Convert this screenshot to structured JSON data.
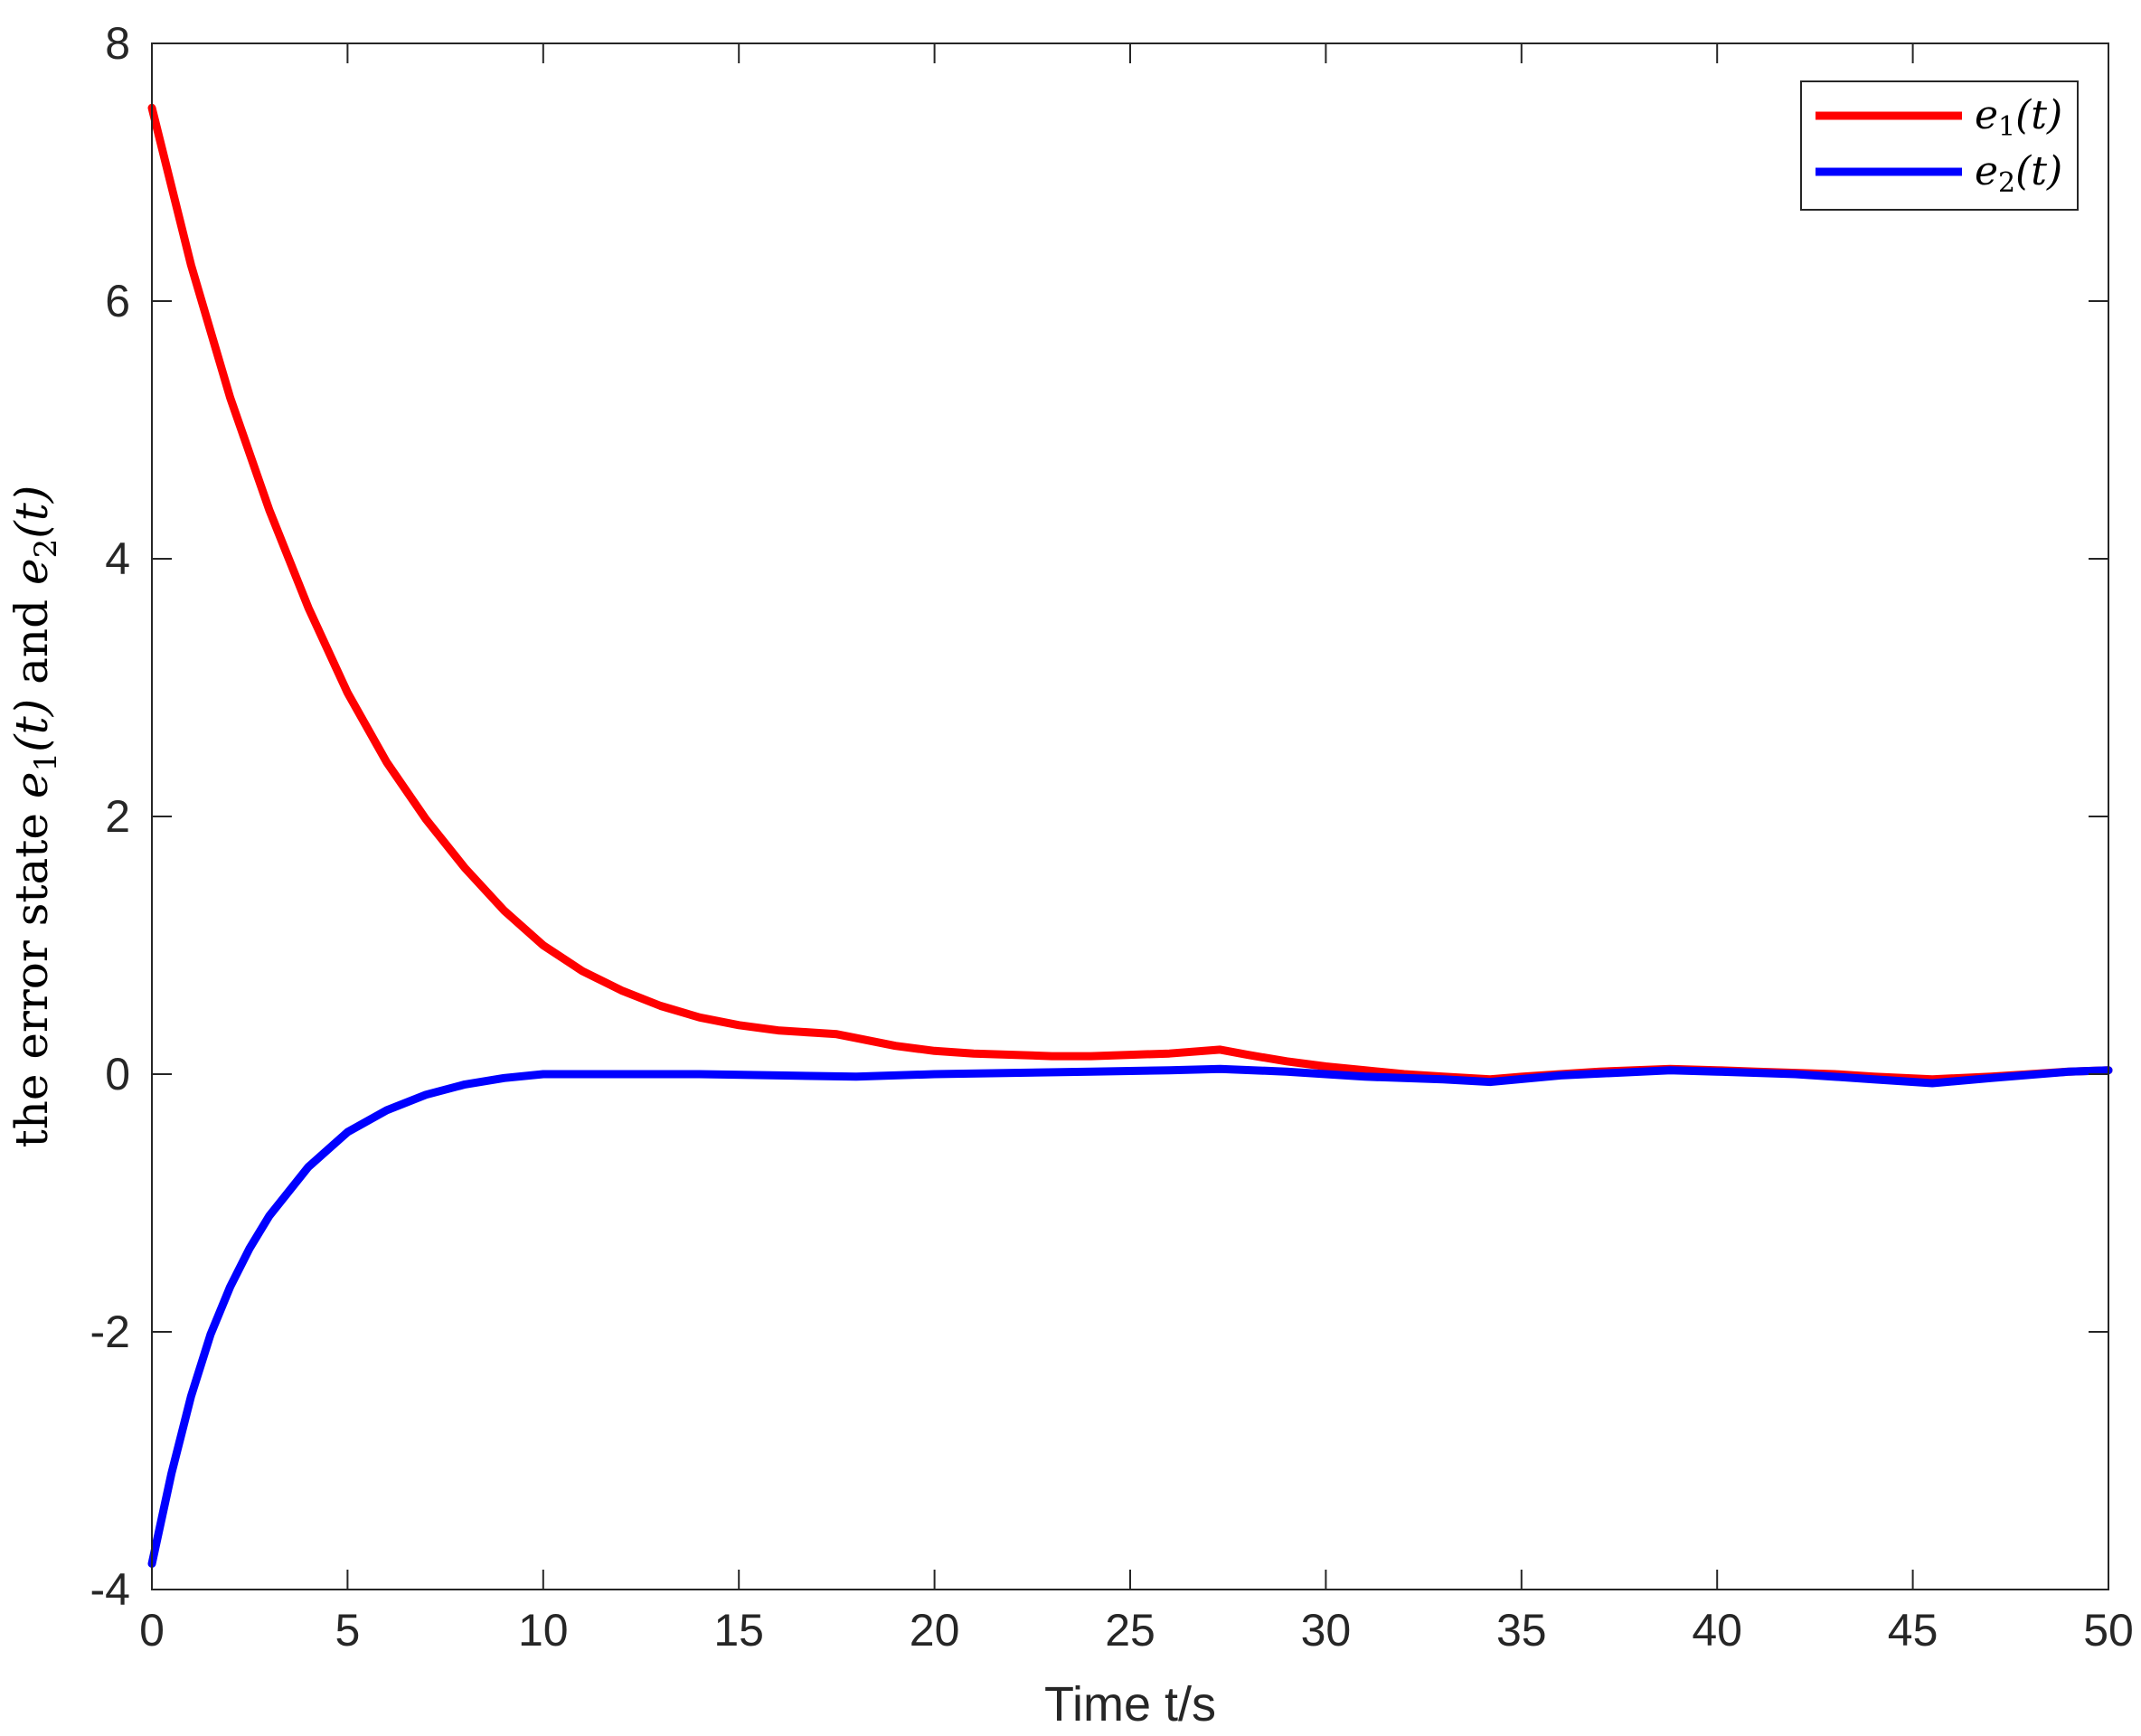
{
  "chart_data": {
    "type": "line",
    "title": "",
    "xlabel": "Time t/s",
    "ylabel": {
      "prefix": "the error state ",
      "term1": "e",
      "sub1": "1",
      "arg1": "(t)",
      "conj": " and ",
      "term2": "e",
      "sub2": "2",
      "arg2": "(t)"
    },
    "xlim": [
      0,
      50
    ],
    "ylim": [
      -4,
      8
    ],
    "xticks": [
      0,
      5,
      10,
      15,
      20,
      25,
      30,
      35,
      40,
      45,
      50
    ],
    "yticks": [
      -4,
      -2,
      0,
      2,
      4,
      6,
      8
    ],
    "ytick_labels": [
      "-4",
      "-2",
      "0",
      "2",
      "4",
      "6",
      "8"
    ],
    "grid": false,
    "legend_position": "top-right",
    "series": [
      {
        "name": "e1(t)",
        "legend": {
          "base": "e",
          "sub": "1",
          "arg": "(t)"
        },
        "color": "#ff0000",
        "x": [
          0,
          1,
          2,
          3,
          4,
          5,
          6,
          7,
          8,
          9,
          10,
          11,
          12,
          13,
          14,
          15,
          16,
          17,
          17.5,
          18,
          19,
          20,
          21,
          22,
          23,
          24,
          25,
          26,
          27.3,
          28,
          29,
          30,
          31,
          32,
          33,
          34.2,
          35,
          36,
          37,
          38.8,
          40,
          41,
          42,
          43,
          44,
          45.5,
          47,
          48,
          49,
          50
        ],
        "y": [
          7.5,
          6.28,
          5.25,
          4.38,
          3.62,
          2.96,
          2.42,
          1.98,
          1.6,
          1.27,
          1.0,
          0.8,
          0.65,
          0.53,
          0.44,
          0.38,
          0.34,
          0.32,
          0.31,
          0.28,
          0.22,
          0.18,
          0.16,
          0.15,
          0.14,
          0.14,
          0.15,
          0.16,
          0.19,
          0.15,
          0.1,
          0.06,
          0.03,
          0.0,
          -0.02,
          -0.04,
          -0.02,
          0.0,
          0.02,
          0.04,
          0.03,
          0.02,
          0.01,
          0.0,
          -0.02,
          -0.04,
          -0.02,
          0.0,
          0.02,
          0.03
        ]
      },
      {
        "name": "e2(t)",
        "legend": {
          "base": "e",
          "sub": "2",
          "arg": "(t)"
        },
        "color": "#0000ff",
        "x": [
          0,
          0.5,
          1,
          1.5,
          2,
          2.5,
          3,
          4,
          5,
          6,
          7,
          8,
          9,
          10,
          12,
          14,
          16,
          18,
          20,
          22,
          24,
          26,
          27.3,
          29,
          31,
          33,
          34.2,
          36,
          38.8,
          40,
          42,
          44,
          45.5,
          47,
          49,
          50
        ],
        "y": [
          -3.8,
          -3.1,
          -2.5,
          -2.02,
          -1.65,
          -1.35,
          -1.1,
          -0.72,
          -0.45,
          -0.28,
          -0.16,
          -0.08,
          -0.03,
          0.0,
          0.0,
          0.0,
          -0.01,
          -0.02,
          0.0,
          0.01,
          0.02,
          0.03,
          0.04,
          0.02,
          -0.02,
          -0.04,
          -0.06,
          -0.01,
          0.03,
          0.02,
          0.0,
          -0.04,
          -0.07,
          -0.03,
          0.02,
          0.03
        ]
      }
    ]
  }
}
